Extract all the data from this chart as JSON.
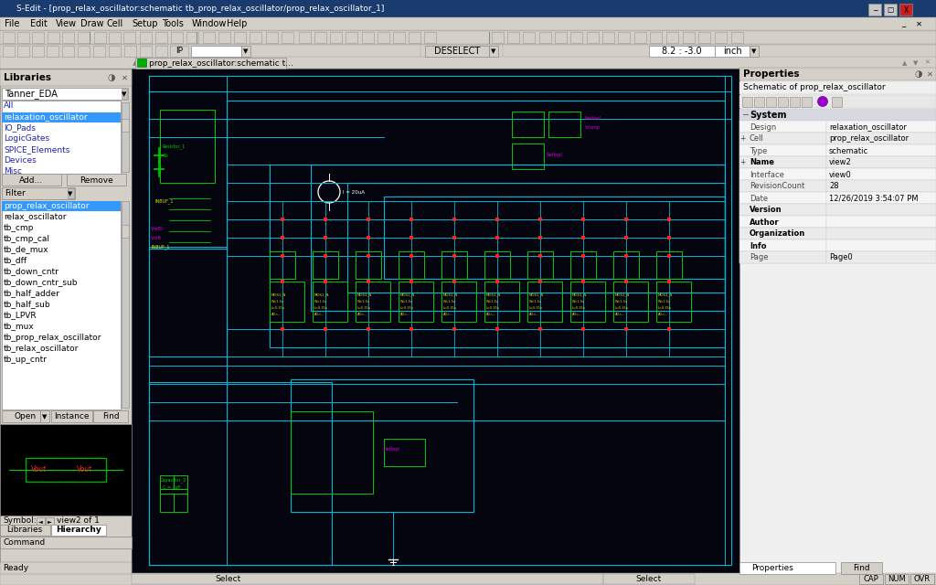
{
  "title": "S-Edit - [prop_relax_oscillator:schematic tb_prop_relax_oscillator/prop_relax_oscillator_1]",
  "menubar": [
    "File",
    "Edit",
    "View",
    "Draw",
    "Cell",
    "Setup",
    "Tools",
    "Window",
    "Help"
  ],
  "tab_label": "prop_relax_oscillator:schematic t...",
  "coords_text": "8.2 : -3.0",
  "coords_units": "inch",
  "deselect_text": "DESELECT",
  "libraries_title": "Libraries",
  "library_dropdown": "Tanner_EDA",
  "lib_items": [
    "All",
    "relaxation_oscillator",
    "IO_Pads",
    "LogicGates",
    "SPICE_Elements",
    "Devices",
    "Misc"
  ],
  "lib_selected": "relaxation_oscillator",
  "filter_label": "Filter",
  "cell_items": [
    "prop_relax_oscillator",
    "relax_oscillator",
    "tb_cmp",
    "tb_cmp_cal",
    "tb_de_mux",
    "tb_dff",
    "tb_down_cntr",
    "tb_down_cntr_sub",
    "tb_half_adder",
    "tb_half_sub",
    "tb_LPVR",
    "tb_mux",
    "tb_prop_relax_oscillator",
    "tb_relax_oscillator",
    "tb_up_cntr"
  ],
  "cell_selected": "prop_relax_oscillator",
  "btn_open": "Open",
  "btn_instance": "Instance",
  "btn_find": "Find",
  "btn_add": "Add...",
  "btn_remove": "Remove",
  "symbol_text": "Symbol:",
  "view_text": "view2 of 1",
  "tab_libraries": "Libraries",
  "tab_hierarchy": "Hierarchy",
  "tab_command": "Command",
  "status_ready": "Ready",
  "select_text": "Select",
  "cap_text": "CAP",
  "num_text": "NUM",
  "ovr_text": "OVR",
  "properties_title": "Properties",
  "schematic_label": "Schematic of prop_relax_oscillator",
  "system_label": "System",
  "prop_rows": [
    [
      "Design",
      "relaxation_oscillator"
    ],
    [
      "Cell",
      "prop_relax_oscillator"
    ],
    [
      "Type",
      "schematic"
    ],
    [
      "Name",
      "view2"
    ],
    [
      "Interface",
      "view0"
    ],
    [
      "RevisionCount",
      "28"
    ],
    [
      "Date",
      "12/26/2019 3:54:07 PM"
    ],
    [
      "Version",
      ""
    ],
    [
      "Author",
      ""
    ],
    [
      "Organization",
      ""
    ],
    [
      "Info",
      ""
    ],
    [
      "Page",
      "Page0"
    ]
  ]
}
